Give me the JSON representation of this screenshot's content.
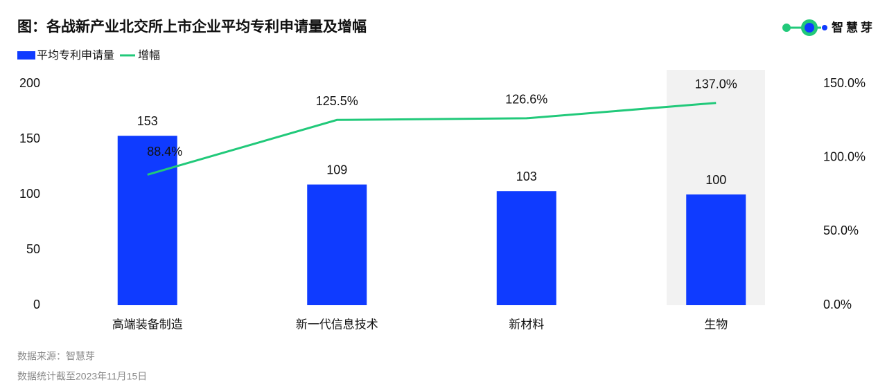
{
  "chart_data": {
    "type": "bar",
    "title": "图：各战新产业北交所上市企业平均专利申请量及增幅",
    "logo": "智慧芽",
    "categories": [
      "高端装备制造",
      "新一代信息技术",
      "新材料",
      "生物"
    ],
    "series": [
      {
        "name": "平均专利申请量",
        "type": "bar",
        "color": "#0f3bff",
        "values": [
          153,
          109,
          103,
          100
        ]
      },
      {
        "name": "增幅",
        "type": "line",
        "axis": "y2",
        "color": "#21c97a",
        "values": [
          88.4,
          125.5,
          126.6,
          137.0
        ],
        "value_labels": [
          "88.4%",
          "125.5%",
          "126.6%",
          "137.0%"
        ]
      }
    ],
    "ylim": [
      0,
      200
    ],
    "yticks": [
      0,
      50,
      100,
      150,
      200
    ],
    "y2lim": [
      0,
      150
    ],
    "y2ticks": [
      {
        "value": 0,
        "label": "0.0%"
      },
      {
        "value": 50,
        "label": "50.0%"
      },
      {
        "value": 100,
        "label": "100.0%"
      },
      {
        "value": 150,
        "label": "150.0%"
      }
    ],
    "notes": [
      "数据来源：智慧芽",
      "数据统计截至2023年11月15日"
    ]
  }
}
